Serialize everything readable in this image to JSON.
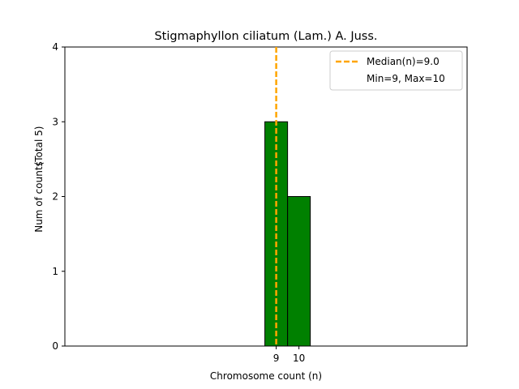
{
  "chart_data": {
    "type": "bar",
    "title": "Stigmaphyllon ciliatum (Lam.) A. Juss.",
    "xlabel": "Chromosome count (n)",
    "ylabel": "Num of counts",
    "ylabel_total": "(Total 5)",
    "categories": [
      9,
      10
    ],
    "values": [
      3,
      2
    ],
    "xticks": [
      "9",
      "10"
    ],
    "yticks": [
      "0",
      "1",
      "2",
      "3",
      "4"
    ],
    "ylim": [
      0,
      4
    ],
    "median": 9.0,
    "min": 9,
    "max": 10,
    "legend": {
      "position": "top-right",
      "entries": [
        "Median(n)=9.0",
        "Min=9, Max=10"
      ]
    },
    "grid": false,
    "colors": {
      "bar": "#008000",
      "bar_edge": "#000000",
      "median": "#FFA500"
    }
  }
}
